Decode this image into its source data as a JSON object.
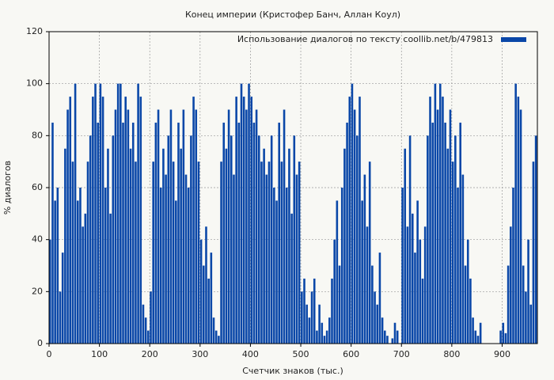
{
  "chart_data": {
    "type": "bar",
    "title": "Конец империи (Кристофер Банч, Аллан Коул)",
    "xlabel": "Счетчик знаков (тыс.)",
    "ylabel": "% диалогов",
    "series": [
      {
        "name": "Использование диалогов по тексту  coollib.net/b/479813",
        "color": "#0a47a8",
        "x": [
          0,
          5,
          10,
          15,
          20,
          25,
          30,
          35,
          40,
          45,
          50,
          55,
          60,
          65,
          70,
          75,
          80,
          85,
          90,
          95,
          100,
          105,
          110,
          115,
          120,
          125,
          130,
          135,
          140,
          145,
          150,
          155,
          160,
          165,
          170,
          175,
          180,
          185,
          190,
          195,
          200,
          205,
          210,
          215,
          220,
          225,
          230,
          235,
          240,
          245,
          250,
          255,
          260,
          265,
          270,
          275,
          280,
          285,
          290,
          295,
          300,
          305,
          310,
          315,
          320,
          325,
          330,
          335,
          340,
          345,
          350,
          355,
          360,
          365,
          370,
          375,
          380,
          385,
          390,
          395,
          400,
          405,
          410,
          415,
          420,
          425,
          430,
          435,
          440,
          445,
          450,
          455,
          460,
          465,
          470,
          475,
          480,
          485,
          490,
          495,
          500,
          505,
          510,
          515,
          520,
          525,
          530,
          535,
          540,
          545,
          550,
          555,
          560,
          565,
          570,
          575,
          580,
          585,
          590,
          595,
          600,
          605,
          610,
          615,
          620,
          625,
          630,
          635,
          640,
          645,
          650,
          655,
          660,
          665,
          670,
          675,
          680,
          685,
          690,
          695,
          700,
          705,
          710,
          715,
          720,
          725,
          730,
          735,
          740,
          745,
          750,
          755,
          760,
          765,
          770,
          775,
          780,
          785,
          790,
          795,
          800,
          805,
          810,
          815,
          820,
          825,
          830,
          835,
          840,
          845,
          850,
          855,
          860,
          865,
          870,
          875,
          880,
          885,
          890,
          895,
          900,
          905,
          910,
          915,
          920,
          925,
          930,
          935,
          940,
          945,
          950,
          955,
          960,
          965
        ],
        "values": [
          40,
          85,
          55,
          60,
          20,
          35,
          75,
          90,
          95,
          70,
          100,
          55,
          60,
          45,
          50,
          70,
          80,
          95,
          100,
          85,
          100,
          95,
          60,
          75,
          50,
          80,
          90,
          100,
          100,
          85,
          95,
          90,
          75,
          85,
          70,
          100,
          95,
          15,
          10,
          5,
          20,
          70,
          85,
          90,
          60,
          75,
          65,
          80,
          90,
          70,
          55,
          85,
          75,
          90,
          65,
          60,
          80,
          95,
          90,
          70,
          40,
          30,
          45,
          25,
          35,
          10,
          5,
          3,
          70,
          85,
          75,
          90,
          80,
          65,
          95,
          85,
          100,
          95,
          90,
          100,
          95,
          85,
          90,
          80,
          70,
          75,
          65,
          70,
          80,
          60,
          55,
          85,
          70,
          90,
          60,
          75,
          50,
          80,
          65,
          70,
          20,
          25,
          15,
          10,
          20,
          25,
          5,
          15,
          8,
          3,
          5,
          10,
          25,
          40,
          55,
          30,
          60,
          75,
          85,
          95,
          100,
          90,
          80,
          95,
          55,
          65,
          45,
          70,
          30,
          20,
          15,
          35,
          10,
          5,
          3,
          0,
          2,
          8,
          5,
          0,
          60,
          75,
          45,
          80,
          50,
          35,
          55,
          40,
          25,
          45,
          80,
          95,
          85,
          100,
          90,
          100,
          95,
          85,
          75,
          90,
          70,
          80,
          60,
          85,
          65,
          30,
          40,
          25,
          10,
          5,
          3,
          8,
          0,
          0,
          0,
          0,
          0,
          0,
          0,
          5,
          8,
          4,
          30,
          45,
          60,
          100,
          95,
          90,
          30,
          20,
          40,
          15,
          70,
          80
        ]
      }
    ],
    "xlim": [
      0,
      970
    ],
    "xticks": [
      0,
      100,
      200,
      300,
      400,
      500,
      600,
      700,
      800,
      900
    ],
    "ylim": [
      0,
      120
    ],
    "yticks": [
      0,
      20,
      40,
      60,
      80,
      100,
      120
    ],
    "grid": true,
    "legend": "upper right"
  }
}
